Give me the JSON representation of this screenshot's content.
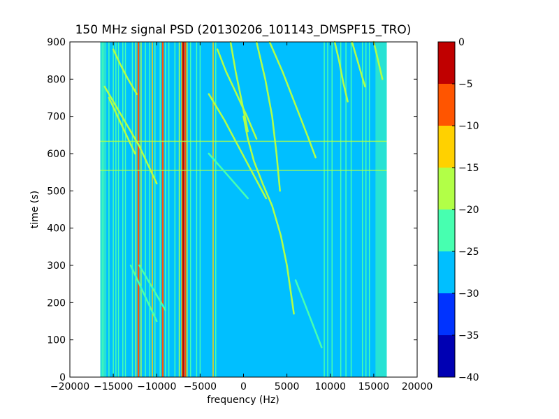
{
  "chart_data": {
    "type": "heatmap",
    "title": "150 MHz signal PSD (20130206_101143_DMSPF15_TRO)",
    "xlabel": "frequency (Hz)",
    "ylabel": "time (s)",
    "xlim": [
      -20000,
      20000
    ],
    "ylim": [
      0,
      900
    ],
    "x_ticks": [
      -20000,
      -15000,
      -10000,
      -5000,
      0,
      5000,
      10000,
      15000,
      20000
    ],
    "y_ticks": [
      0,
      100,
      200,
      300,
      400,
      500,
      600,
      700,
      800,
      900
    ],
    "data_extent": {
      "x": [
        -16500,
        16500
      ],
      "y": [
        0,
        900
      ]
    },
    "colorbar": {
      "levels": [
        -40,
        -35,
        -30,
        -25,
        -20,
        -15,
        -10,
        -5,
        0
      ],
      "colors": [
        "#0000b3",
        "#0033ff",
        "#00bfff",
        "#47ffb0",
        "#b2ff47",
        "#ffd100",
        "#ff5500",
        "#c00000"
      ]
    },
    "background_level": -27.5,
    "vertical_lines": [
      {
        "x": -16200,
        "v": -22
      },
      {
        "x": -15500,
        "v": -22
      },
      {
        "x": -15000,
        "v": -22
      },
      {
        "x": -14700,
        "v": -22
      },
      {
        "x": -14400,
        "v": -22
      },
      {
        "x": -13900,
        "v": -22
      },
      {
        "x": -13600,
        "v": -22
      },
      {
        "x": -12800,
        "v": -22
      },
      {
        "x": -12400,
        "v": -18
      },
      {
        "x": -12100,
        "v": -7
      },
      {
        "x": -11800,
        "v": -18
      },
      {
        "x": -11300,
        "v": -22
      },
      {
        "x": -10800,
        "v": -22
      },
      {
        "x": -10500,
        "v": -12
      },
      {
        "x": -10200,
        "v": -22
      },
      {
        "x": -9600,
        "v": -22
      },
      {
        "x": -9300,
        "v": -7
      },
      {
        "x": -9000,
        "v": -22
      },
      {
        "x": -8600,
        "v": -22
      },
      {
        "x": -7900,
        "v": -22
      },
      {
        "x": -7400,
        "v": -18
      },
      {
        "x": -7100,
        "v": -12
      },
      {
        "x": -6950,
        "v": -3
      },
      {
        "x": -6700,
        "v": -7
      },
      {
        "x": -6500,
        "v": -18
      },
      {
        "x": -6100,
        "v": -22
      },
      {
        "x": -5400,
        "v": -22
      },
      {
        "x": -5000,
        "v": -22
      },
      {
        "x": -3500,
        "v": -12
      },
      {
        "x": -3200,
        "v": -22
      },
      {
        "x": 9300,
        "v": -22
      },
      {
        "x": 9700,
        "v": -22
      },
      {
        "x": 10200,
        "v": -22
      },
      {
        "x": 11200,
        "v": -22
      },
      {
        "x": 11800,
        "v": -22
      },
      {
        "x": 12400,
        "v": -22
      },
      {
        "x": 13700,
        "v": -22
      },
      {
        "x": 14100,
        "v": -22
      },
      {
        "x": 14500,
        "v": -22
      }
    ],
    "edge_bands": [
      {
        "x": [
          -16500,
          -15800
        ],
        "v": -22
      },
      {
        "x": [
          15200,
          16500
        ],
        "v": -22
      }
    ],
    "horizontal_lines": [
      {
        "y": 555,
        "x": [
          -16500,
          16500
        ],
        "v": -16
      },
      {
        "y": 633,
        "x": [
          -16500,
          16500
        ],
        "v": -18
      }
    ],
    "traces": [
      {
        "v": -17,
        "points": [
          [
            0,
            700
          ],
          [
            500,
            640
          ],
          [
            1200,
            580
          ],
          [
            2200,
            520
          ],
          [
            3300,
            460
          ],
          [
            4300,
            380
          ],
          [
            5000,
            300
          ],
          [
            5500,
            220
          ],
          [
            5800,
            170
          ]
        ]
      },
      {
        "v": -18,
        "points": [
          [
            -16000,
            780
          ],
          [
            -15000,
            740
          ],
          [
            -14000,
            700
          ],
          [
            -13000,
            660
          ],
          [
            -12000,
            620
          ],
          [
            -11000,
            570
          ],
          [
            -10000,
            520
          ]
        ]
      },
      {
        "v": -18,
        "points": [
          [
            3000,
            900
          ],
          [
            4500,
            820
          ],
          [
            5500,
            760
          ],
          [
            6500,
            700
          ],
          [
            7500,
            640
          ],
          [
            8300,
            590
          ]
        ]
      },
      {
        "v": -18,
        "points": [
          [
            1500,
            900
          ],
          [
            2500,
            800
          ],
          [
            3300,
            700
          ],
          [
            3800,
            600
          ],
          [
            4200,
            500
          ]
        ]
      },
      {
        "v": -18,
        "points": [
          [
            -3000,
            880
          ],
          [
            -2000,
            820
          ],
          [
            -800,
            760
          ],
          [
            400,
            700
          ],
          [
            1500,
            640
          ]
        ]
      },
      {
        "v": -18,
        "points": [
          [
            -4000,
            760
          ],
          [
            -2200,
            690
          ],
          [
            -600,
            620
          ],
          [
            1000,
            550
          ],
          [
            2600,
            480
          ]
        ]
      },
      {
        "v": -18,
        "points": [
          [
            -1500,
            900
          ],
          [
            -900,
            820
          ],
          [
            -200,
            740
          ],
          [
            500,
            660
          ]
        ]
      },
      {
        "v": -18,
        "points": [
          [
            -15500,
            750
          ],
          [
            -14500,
            700
          ],
          [
            -13500,
            650
          ],
          [
            -12500,
            600
          ]
        ]
      },
      {
        "v": -18,
        "points": [
          [
            -15000,
            880
          ],
          [
            -14200,
            840
          ],
          [
            -13300,
            800
          ],
          [
            -12300,
            760
          ]
        ]
      },
      {
        "v": -18,
        "points": [
          [
            10500,
            900
          ],
          [
            11000,
            850
          ],
          [
            11500,
            790
          ],
          [
            12000,
            740
          ]
        ]
      },
      {
        "v": -18,
        "points": [
          [
            12500,
            900
          ],
          [
            13000,
            860
          ],
          [
            13500,
            820
          ],
          [
            14000,
            780
          ]
        ]
      },
      {
        "v": -18,
        "points": [
          [
            15000,
            900
          ],
          [
            15500,
            850
          ],
          [
            16000,
            800
          ]
        ]
      },
      {
        "v": -22,
        "points": [
          [
            -4000,
            600
          ],
          [
            -2500,
            560
          ],
          [
            -1000,
            520
          ],
          [
            500,
            480
          ]
        ]
      },
      {
        "v": -22,
        "points": [
          [
            -12000,
            300
          ],
          [
            -11000,
            260
          ],
          [
            -10000,
            220
          ],
          [
            -9000,
            180
          ]
        ]
      },
      {
        "v": -22,
        "points": [
          [
            6000,
            260
          ],
          [
            7000,
            200
          ],
          [
            8000,
            140
          ],
          [
            9000,
            80
          ]
        ]
      },
      {
        "v": -22,
        "points": [
          [
            -13000,
            300
          ],
          [
            -12000,
            250
          ],
          [
            -11000,
            200
          ],
          [
            -10000,
            150
          ]
        ]
      }
    ]
  }
}
